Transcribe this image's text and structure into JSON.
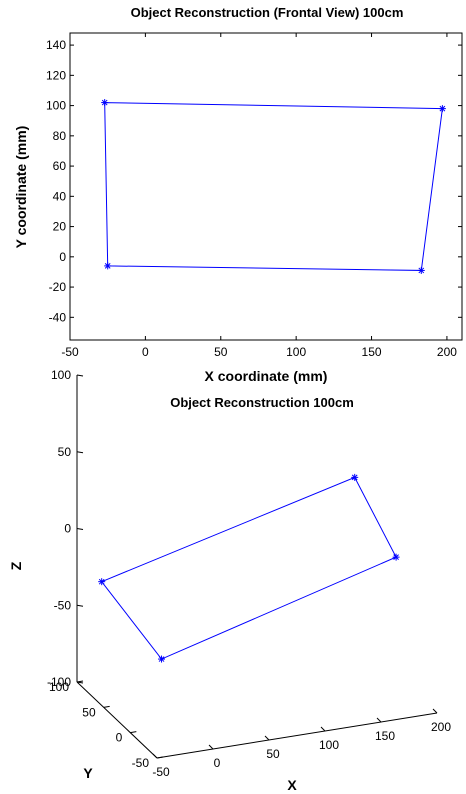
{
  "chart_data": [
    {
      "type": "line",
      "title": "Object Reconstruction (Frontal View) 100cm",
      "xlabel": "X coordinate (mm)",
      "ylabel": "Y coordinate (mm)",
      "xlim": [
        -50,
        210
      ],
      "ylim": [
        -55,
        148
      ],
      "xticks": [
        "-50",
        "0",
        "50",
        "100",
        "150",
        "200"
      ],
      "yticks": [
        "-40",
        "-20",
        "0",
        "20",
        "40",
        "60",
        "80",
        "100",
        "120",
        "140"
      ],
      "series": [
        {
          "color": "#0000ff",
          "marker": "asterisk",
          "points": [
            {
              "x": -27,
              "y": 102
            },
            {
              "x": 197,
              "y": 98
            },
            {
              "x": 183,
              "y": -9
            },
            {
              "x": -25,
              "y": -6
            },
            {
              "x": -27,
              "y": 102
            }
          ]
        }
      ]
    },
    {
      "type": "line",
      "projection": "3d",
      "title": "Object Reconstruction 100cm",
      "xlabel": "X",
      "ylabel": "Y",
      "zlabel": "Z",
      "xlim": [
        -50,
        200
      ],
      "ylim": [
        -50,
        100
      ],
      "zlim": [
        -100,
        100
      ],
      "xticks": [
        "-50",
        "0",
        "50",
        "100",
        "150",
        "200"
      ],
      "yticks": [
        "-50",
        "0",
        "50",
        "100"
      ],
      "zticks": [
        "-100",
        "-50",
        "0",
        "50",
        "100"
      ],
      "series": [
        {
          "color": "#0000ff",
          "marker": "asterisk",
          "points": [
            {
              "x": -27,
              "y": 102,
              "z": -38
            },
            {
              "x": 197,
              "y": 98,
              "z": 5
            },
            {
              "x": 183,
              "y": -9,
              "z": -10
            },
            {
              "x": -25,
              "y": -6,
              "z": -53
            },
            {
              "x": -27,
              "y": 102,
              "z": -38
            }
          ]
        }
      ]
    }
  ]
}
